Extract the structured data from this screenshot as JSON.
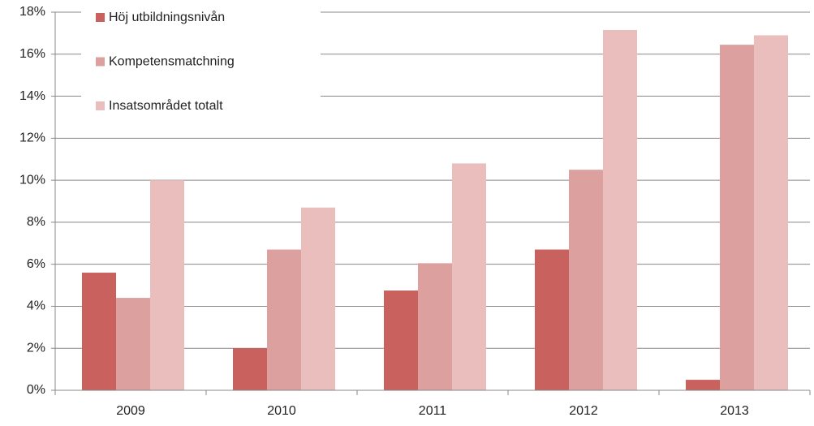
{
  "chart_data": {
    "type": "bar",
    "categories": [
      "2009",
      "2010",
      "2011",
      "2012",
      "2013"
    ],
    "series": [
      {
        "name": "Höj utbildningsnivån",
        "color": "#c9625f",
        "values": [
          5.6,
          2.0,
          4.75,
          6.7,
          0.5
        ]
      },
      {
        "name": "Kompetensmatchning",
        "color": "#dca09f",
        "values": [
          4.4,
          6.7,
          6.05,
          10.5,
          16.45
        ]
      },
      {
        "name": "Insatsområdet totalt",
        "color": "#e9bebd",
        "values": [
          10.0,
          8.7,
          10.8,
          17.15,
          16.9
        ]
      }
    ],
    "ylim": [
      0,
      18
    ],
    "yticks": [
      {
        "value": 0,
        "label": "0%"
      },
      {
        "value": 2,
        "label": "2%"
      },
      {
        "value": 4,
        "label": "4%"
      },
      {
        "value": 6,
        "label": "6%"
      },
      {
        "value": 8,
        "label": "8%"
      },
      {
        "value": 10,
        "label": "10%"
      },
      {
        "value": 12,
        "label": "12%"
      },
      {
        "value": 14,
        "label": "14%"
      },
      {
        "value": 16,
        "label": "16%"
      },
      {
        "value": 18,
        "label": "18%"
      }
    ],
    "grid": true,
    "legend": "top-left"
  }
}
